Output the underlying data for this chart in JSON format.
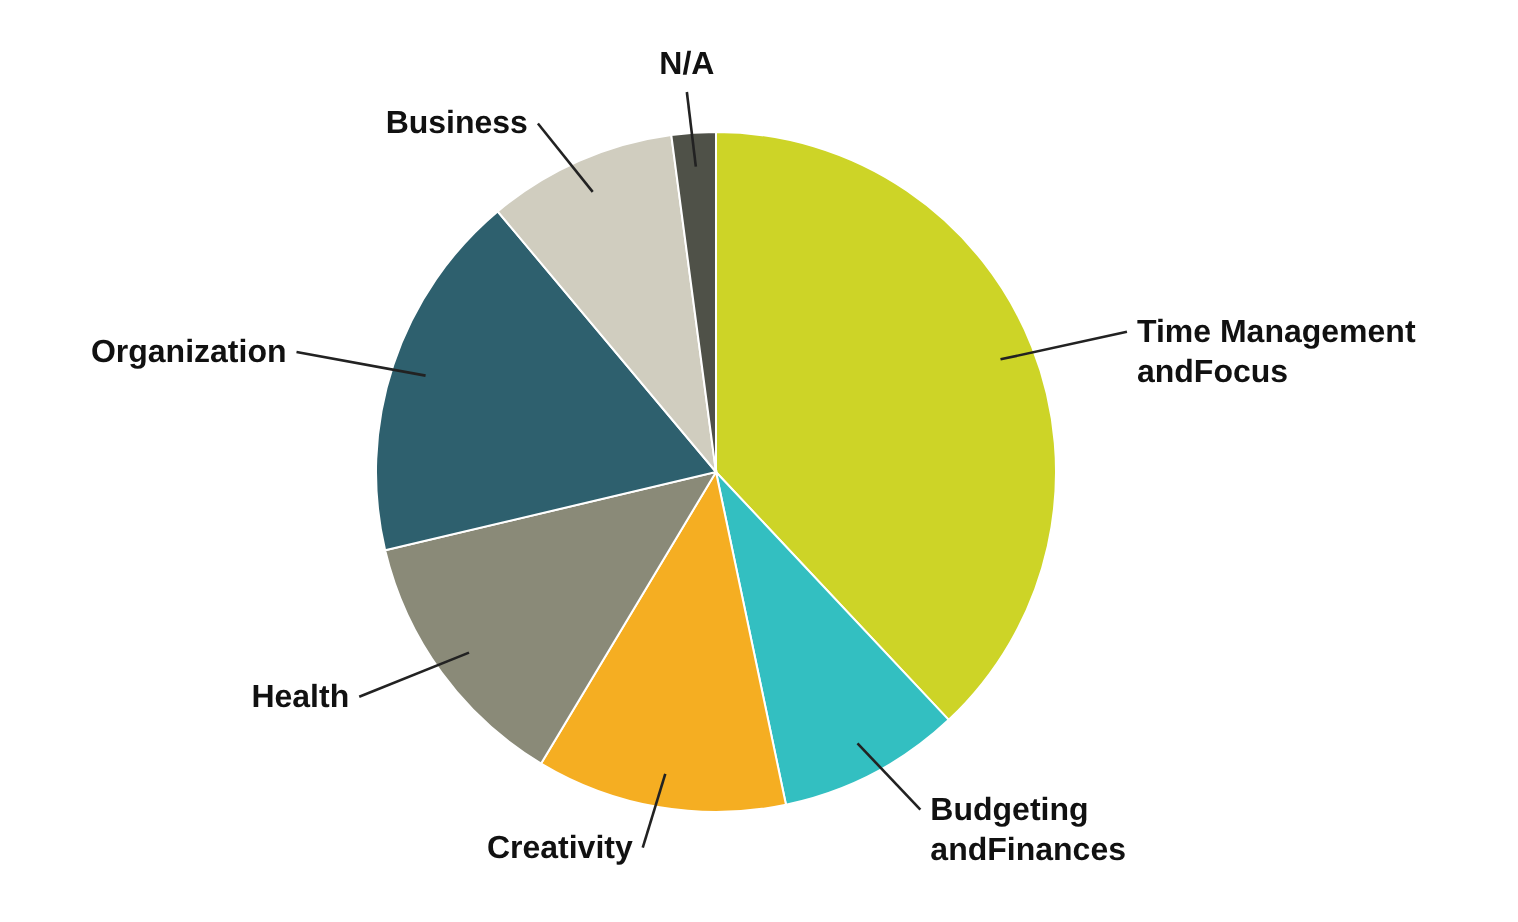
{
  "chart_data": {
    "type": "pie",
    "categories": [
      "Time Management andFocus",
      "Budgeting andFinances",
      "Creativity",
      "Health",
      "Organization",
      "Business",
      "N/A"
    ],
    "values": [
      38,
      8.7,
      11.9,
      12.7,
      17.6,
      9,
      2.1
    ],
    "colors": [
      "#cdd427",
      "#33bfc1",
      "#f5ae22",
      "#8a8a78",
      "#2e606e",
      "#d0cdbf",
      "#4f5148"
    ]
  }
}
